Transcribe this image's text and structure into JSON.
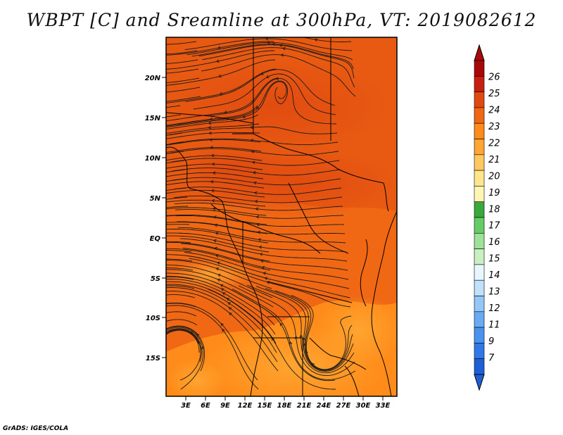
{
  "title": "WBPT [C] and Sreamline at 300hPa, VT: 2019082612",
  "credit": "GrADS: IGES/COLA",
  "map": {
    "region": "Central and Southern Africa",
    "lat_labels": [
      "20N",
      "15N",
      "10N",
      "5N",
      "EQ",
      "5S",
      "10S",
      "15S"
    ],
    "lon_labels": [
      "3E",
      "6E",
      "9E",
      "12E",
      "15E",
      "18E",
      "21E",
      "24E",
      "27E",
      "30E",
      "33E"
    ],
    "lat_range": [
      -20,
      25
    ],
    "lon_range": [
      0,
      35
    ]
  },
  "colorbar": {
    "labels": [
      "7",
      "9",
      "11",
      "12",
      "13",
      "14",
      "15",
      "16",
      "17",
      "18",
      "19",
      "20",
      "21",
      "22",
      "23",
      "24",
      "25",
      "26"
    ],
    "colors": [
      "#1f5fd6",
      "#2f78e6",
      "#4a92ef",
      "#6aaaf3",
      "#94c6f7",
      "#c0e0fb",
      "#e8f6ff",
      "#c8f0c0",
      "#9ee29a",
      "#66cc66",
      "#3aa83a",
      "#fff6b4",
      "#ffe68c",
      "#ffc860",
      "#ffa632",
      "#ff8c1a",
      "#f06814",
      "#e04a10",
      "#c82010",
      "#a80808"
    ]
  }
}
